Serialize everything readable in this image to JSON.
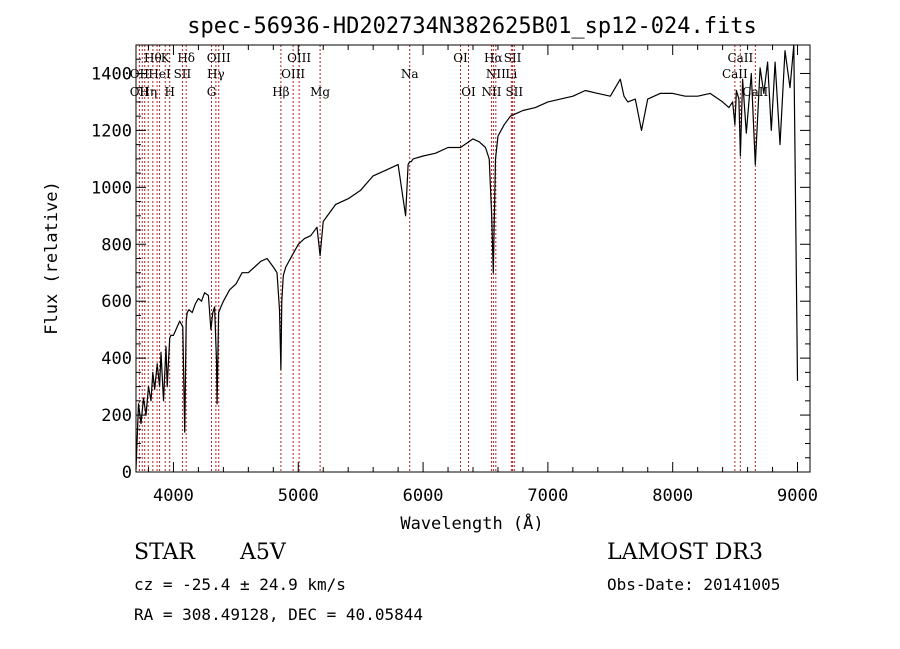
{
  "chart_data": {
    "type": "line",
    "title": "spec-56936-HD202734N382625B01_sp12-024.fits",
    "xlabel": "Wavelength (Å)",
    "ylabel": "Flux (relative)",
    "xlim": [
      3700,
      9100
    ],
    "ylim": [
      0,
      1500
    ],
    "x_ticks": [
      4000,
      5000,
      6000,
      7000,
      8000,
      9000
    ],
    "y_ticks": [
      0,
      200,
      400,
      600,
      800,
      1000,
      1200,
      1400
    ],
    "grid": false,
    "series": [
      {
        "name": "flux",
        "x": [
          3700,
          3720,
          3740,
          3760,
          3780,
          3800,
          3820,
          3835,
          3850,
          3870,
          3889,
          3900,
          3920,
          3940,
          3950,
          3970,
          3980,
          4000,
          4020,
          4050,
          4075,
          4090,
          4102,
          4110,
          4125,
          4150,
          4175,
          4200,
          4225,
          4250,
          4280,
          4300,
          4315,
          4330,
          4345,
          4350,
          4362,
          4380,
          4400,
          4450,
          4500,
          4550,
          4600,
          4650,
          4700,
          4750,
          4800,
          4830,
          4850,
          4861,
          4868,
          4880,
          4900,
          4950,
          5000,
          5050,
          5100,
          5150,
          5175,
          5200,
          5300,
          5400,
          5500,
          5600,
          5700,
          5800,
          5860,
          5880,
          5893,
          5905,
          5920,
          6000,
          6100,
          6200,
          6300,
          6400,
          6450,
          6500,
          6530,
          6550,
          6563,
          6570,
          6580,
          6600,
          6650,
          6700,
          6750,
          6800,
          6900,
          7000,
          7100,
          7200,
          7300,
          7400,
          7500,
          7580,
          7610,
          7640,
          7700,
          7750,
          7800,
          7900,
          8000,
          8100,
          8200,
          8300,
          8400,
          8450,
          8480,
          8498,
          8510,
          8530,
          8542,
          8560,
          8590,
          8630,
          8662,
          8700,
          8730,
          8760,
          8790,
          8820,
          8860,
          8900,
          8940,
          8970,
          9000
        ],
        "values": [
          10,
          240,
          170,
          260,
          200,
          300,
          250,
          350,
          290,
          380,
          300,
          420,
          250,
          440,
          300,
          470,
          480,
          480,
          500,
          530,
          510,
          140,
          530,
          560,
          570,
          560,
          590,
          610,
          600,
          630,
          620,
          500,
          560,
          580,
          390,
          240,
          560,
          580,
          600,
          640,
          660,
          700,
          700,
          720,
          740,
          750,
          720,
          700,
          570,
          360,
          600,
          690,
          720,
          760,
          800,
          820,
          830,
          860,
          760,
          880,
          940,
          960,
          990,
          1040,
          1060,
          1080,
          900,
          1080,
          1090,
          1090,
          1100,
          1110,
          1120,
          1140,
          1140,
          1170,
          1160,
          1140,
          1100,
          900,
          700,
          870,
          1100,
          1180,
          1220,
          1250,
          1260,
          1270,
          1280,
          1300,
          1310,
          1320,
          1340,
          1330,
          1320,
          1380,
          1320,
          1300,
          1310,
          1200,
          1310,
          1330,
          1330,
          1320,
          1320,
          1330,
          1300,
          1280,
          1300,
          1220,
          1340,
          1310,
          1110,
          1380,
          1190,
          1400,
          1080,
          1420,
          1330,
          1440,
          1200,
          1440,
          1150,
          1480,
          1350,
          1500,
          320
        ]
      }
    ],
    "lines": [
      {
        "wavelength": 3727,
        "labels": [
          "OII"
        ]
      },
      {
        "wavelength": 3750,
        "labels": [
          "OII"
        ]
      },
      {
        "wavelength": 3770,
        "labels": [
          "OII"
        ]
      },
      {
        "wavelength": 3798,
        "labels": [
          "Hη"
        ]
      },
      {
        "wavelength": 3835,
        "labels": [
          "Hθ"
        ]
      },
      {
        "wavelength": 3869,
        "labels": [
          "Hη"
        ]
      },
      {
        "wavelength": 3889,
        "labels": [
          "HeI"
        ]
      },
      {
        "wavelength": 3934,
        "labels": [
          "K"
        ]
      },
      {
        "wavelength": 3970,
        "labels": [
          "H"
        ]
      },
      {
        "wavelength": 4072,
        "labels": [
          "SII"
        ]
      },
      {
        "wavelength": 4102,
        "labels": [
          "Hδ"
        ]
      },
      {
        "wavelength": 4305,
        "labels": [
          "G"
        ]
      },
      {
        "wavelength": 4340,
        "labels": [
          "Hγ"
        ]
      },
      {
        "wavelength": 4363,
        "labels": [
          "OIII"
        ]
      },
      {
        "wavelength": 4861,
        "labels": [
          "Hβ"
        ]
      },
      {
        "wavelength": 4959,
        "labels": [
          "OIII"
        ]
      },
      {
        "wavelength": 5007,
        "labels": [
          "OIII"
        ]
      },
      {
        "wavelength": 5175,
        "labels": [
          "Mg"
        ]
      },
      {
        "wavelength": 5893,
        "labels": [
          "Na"
        ]
      },
      {
        "wavelength": 6300,
        "labels": [
          "OI"
        ]
      },
      {
        "wavelength": 6364,
        "labels": [
          "OI"
        ]
      },
      {
        "wavelength": 6548,
        "labels": [
          "NII"
        ]
      },
      {
        "wavelength": 6563,
        "labels": [
          "Hα"
        ]
      },
      {
        "wavelength": 6583,
        "labels": [
          "NII"
        ]
      },
      {
        "wavelength": 6707,
        "labels": [
          "Li"
        ]
      },
      {
        "wavelength": 6717,
        "labels": [
          "SII"
        ]
      },
      {
        "wavelength": 6731,
        "labels": [
          "SII"
        ]
      },
      {
        "wavelength": 8498,
        "labels": [
          "CaII"
        ]
      },
      {
        "wavelength": 8542,
        "labels": [
          "CaII"
        ]
      },
      {
        "wavelength": 8662,
        "labels": [
          "CaII"
        ]
      }
    ],
    "line_labels": [
      {
        "text": "Hθ",
        "wavelength": 3835,
        "row": 1
      },
      {
        "text": "K",
        "wavelength": 3934,
        "row": 1
      },
      {
        "text": "Hδ",
        "wavelength": 4102,
        "row": 1
      },
      {
        "text": "OIII",
        "wavelength": 4363,
        "row": 1
      },
      {
        "text": "OIII",
        "wavelength": 5007,
        "row": 1
      },
      {
        "text": "OI",
        "wavelength": 6300,
        "row": 1
      },
      {
        "text": "Hα",
        "wavelength": 6563,
        "row": 1
      },
      {
        "text": "SII",
        "wavelength": 6717,
        "row": 1
      },
      {
        "text": "CaII",
        "wavelength": 8542,
        "row": 1
      },
      {
        "text": "OII",
        "wavelength": 3727,
        "row": 2
      },
      {
        "text": "HeI",
        "wavelength": 3889,
        "row": 2
      },
      {
        "text": "SII",
        "wavelength": 4072,
        "row": 2
      },
      {
        "text": "Hγ",
        "wavelength": 4340,
        "row": 2
      },
      {
        "text": "OIII",
        "wavelength": 4959,
        "row": 2
      },
      {
        "text": "Na",
        "wavelength": 5893,
        "row": 2
      },
      {
        "text": "NII",
        "wavelength": 6583,
        "row": 2
      },
      {
        "text": "Li",
        "wavelength": 6707,
        "row": 2
      },
      {
        "text": "CaII",
        "wavelength": 8498,
        "row": 2
      },
      {
        "text": "OII",
        "wavelength": 3727,
        "row": 3
      },
      {
        "text": "Hη",
        "wavelength": 3798,
        "row": 3
      },
      {
        "text": "H",
        "wavelength": 3970,
        "row": 3
      },
      {
        "text": "G",
        "wavelength": 4305,
        "row": 3
      },
      {
        "text": "Hβ",
        "wavelength": 4861,
        "row": 3
      },
      {
        "text": "Mg",
        "wavelength": 5175,
        "row": 3
      },
      {
        "text": "OI",
        "wavelength": 6364,
        "row": 3
      },
      {
        "text": "NII",
        "wavelength": 6548,
        "row": 3
      },
      {
        "text": "SII",
        "wavelength": 6731,
        "row": 3
      },
      {
        "text": "CaII",
        "wavelength": 8662,
        "row": 3
      }
    ]
  },
  "info": {
    "object_class": "STAR",
    "subclass": "A5V",
    "survey": "LAMOST DR3",
    "redshift": "cz = -25.4 ± 24.9 km/s",
    "obs_date": "Obs-Date: 20141005",
    "coords": "RA = 308.49128, DEC =  40.05844"
  },
  "colors": {
    "line_markers": "#b22222",
    "spectrum": "#000000"
  }
}
